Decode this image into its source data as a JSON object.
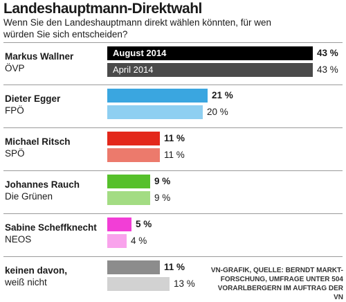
{
  "title": "Landeshauptmann-Direktwahl",
  "subtitle": "Wenn Sie den Landeshauptmann direkt wählen könnten, für wen würden Sie sich entscheiden?",
  "source": "VN-GRAFIK, QUELLE: BERNDT MARKT-FORSCHUNG, UMFRAGE UNTER 504 VORARLBERGERN IM AUFTRAG DER VN",
  "chart_data": {
    "type": "bar",
    "orientation": "horizontal",
    "value_max": 43,
    "series": [
      {
        "name": "August 2014",
        "values": [
          43,
          21,
          11,
          9,
          5,
          11
        ]
      },
      {
        "name": "April 2014",
        "values": [
          43,
          20,
          11,
          9,
          4,
          13
        ]
      }
    ],
    "categories": [
      {
        "name": "Markus Wallner",
        "party": "ÖVP",
        "aug": 43,
        "apr": 43,
        "aug_label": "43 %",
        "apr_label": "43 %",
        "aug_color": "#000000",
        "apr_color": "#4a4a4a"
      },
      {
        "name": "Dieter Egger",
        "party": "FPÖ",
        "aug": 21,
        "apr": 20,
        "aug_label": "21 %",
        "apr_label": "20 %",
        "aug_color": "#3aa6e0",
        "apr_color": "#8ecff1"
      },
      {
        "name": "Michael Ritsch",
        "party": "SPÖ",
        "aug": 11,
        "apr": 11,
        "aug_label": "11 %",
        "apr_label": "11 %",
        "aug_color": "#e3281b",
        "apr_color": "#ec7a6c"
      },
      {
        "name": "Johannes Rauch",
        "party": "Die Grünen",
        "aug": 9,
        "apr": 9,
        "aug_label": "9 %",
        "apr_label": "9 %",
        "aug_color": "#56c02b",
        "apr_color": "#a3dc83"
      },
      {
        "name": "Sabine Scheffknecht",
        "party": "NEOS",
        "aug": 5,
        "apr": 4,
        "aug_label": "5 %",
        "apr_label": "4 %",
        "aug_color": "#f23ed6",
        "apr_color": "#f9a3ec"
      },
      {
        "name": "keinen davon,",
        "party": "weiß nicht",
        "aug": 11,
        "apr": 13,
        "aug_label": "11 %",
        "apr_label": "13 %",
        "aug_color": "#8c8c8c",
        "apr_color": "#d2d2d2"
      }
    ]
  }
}
